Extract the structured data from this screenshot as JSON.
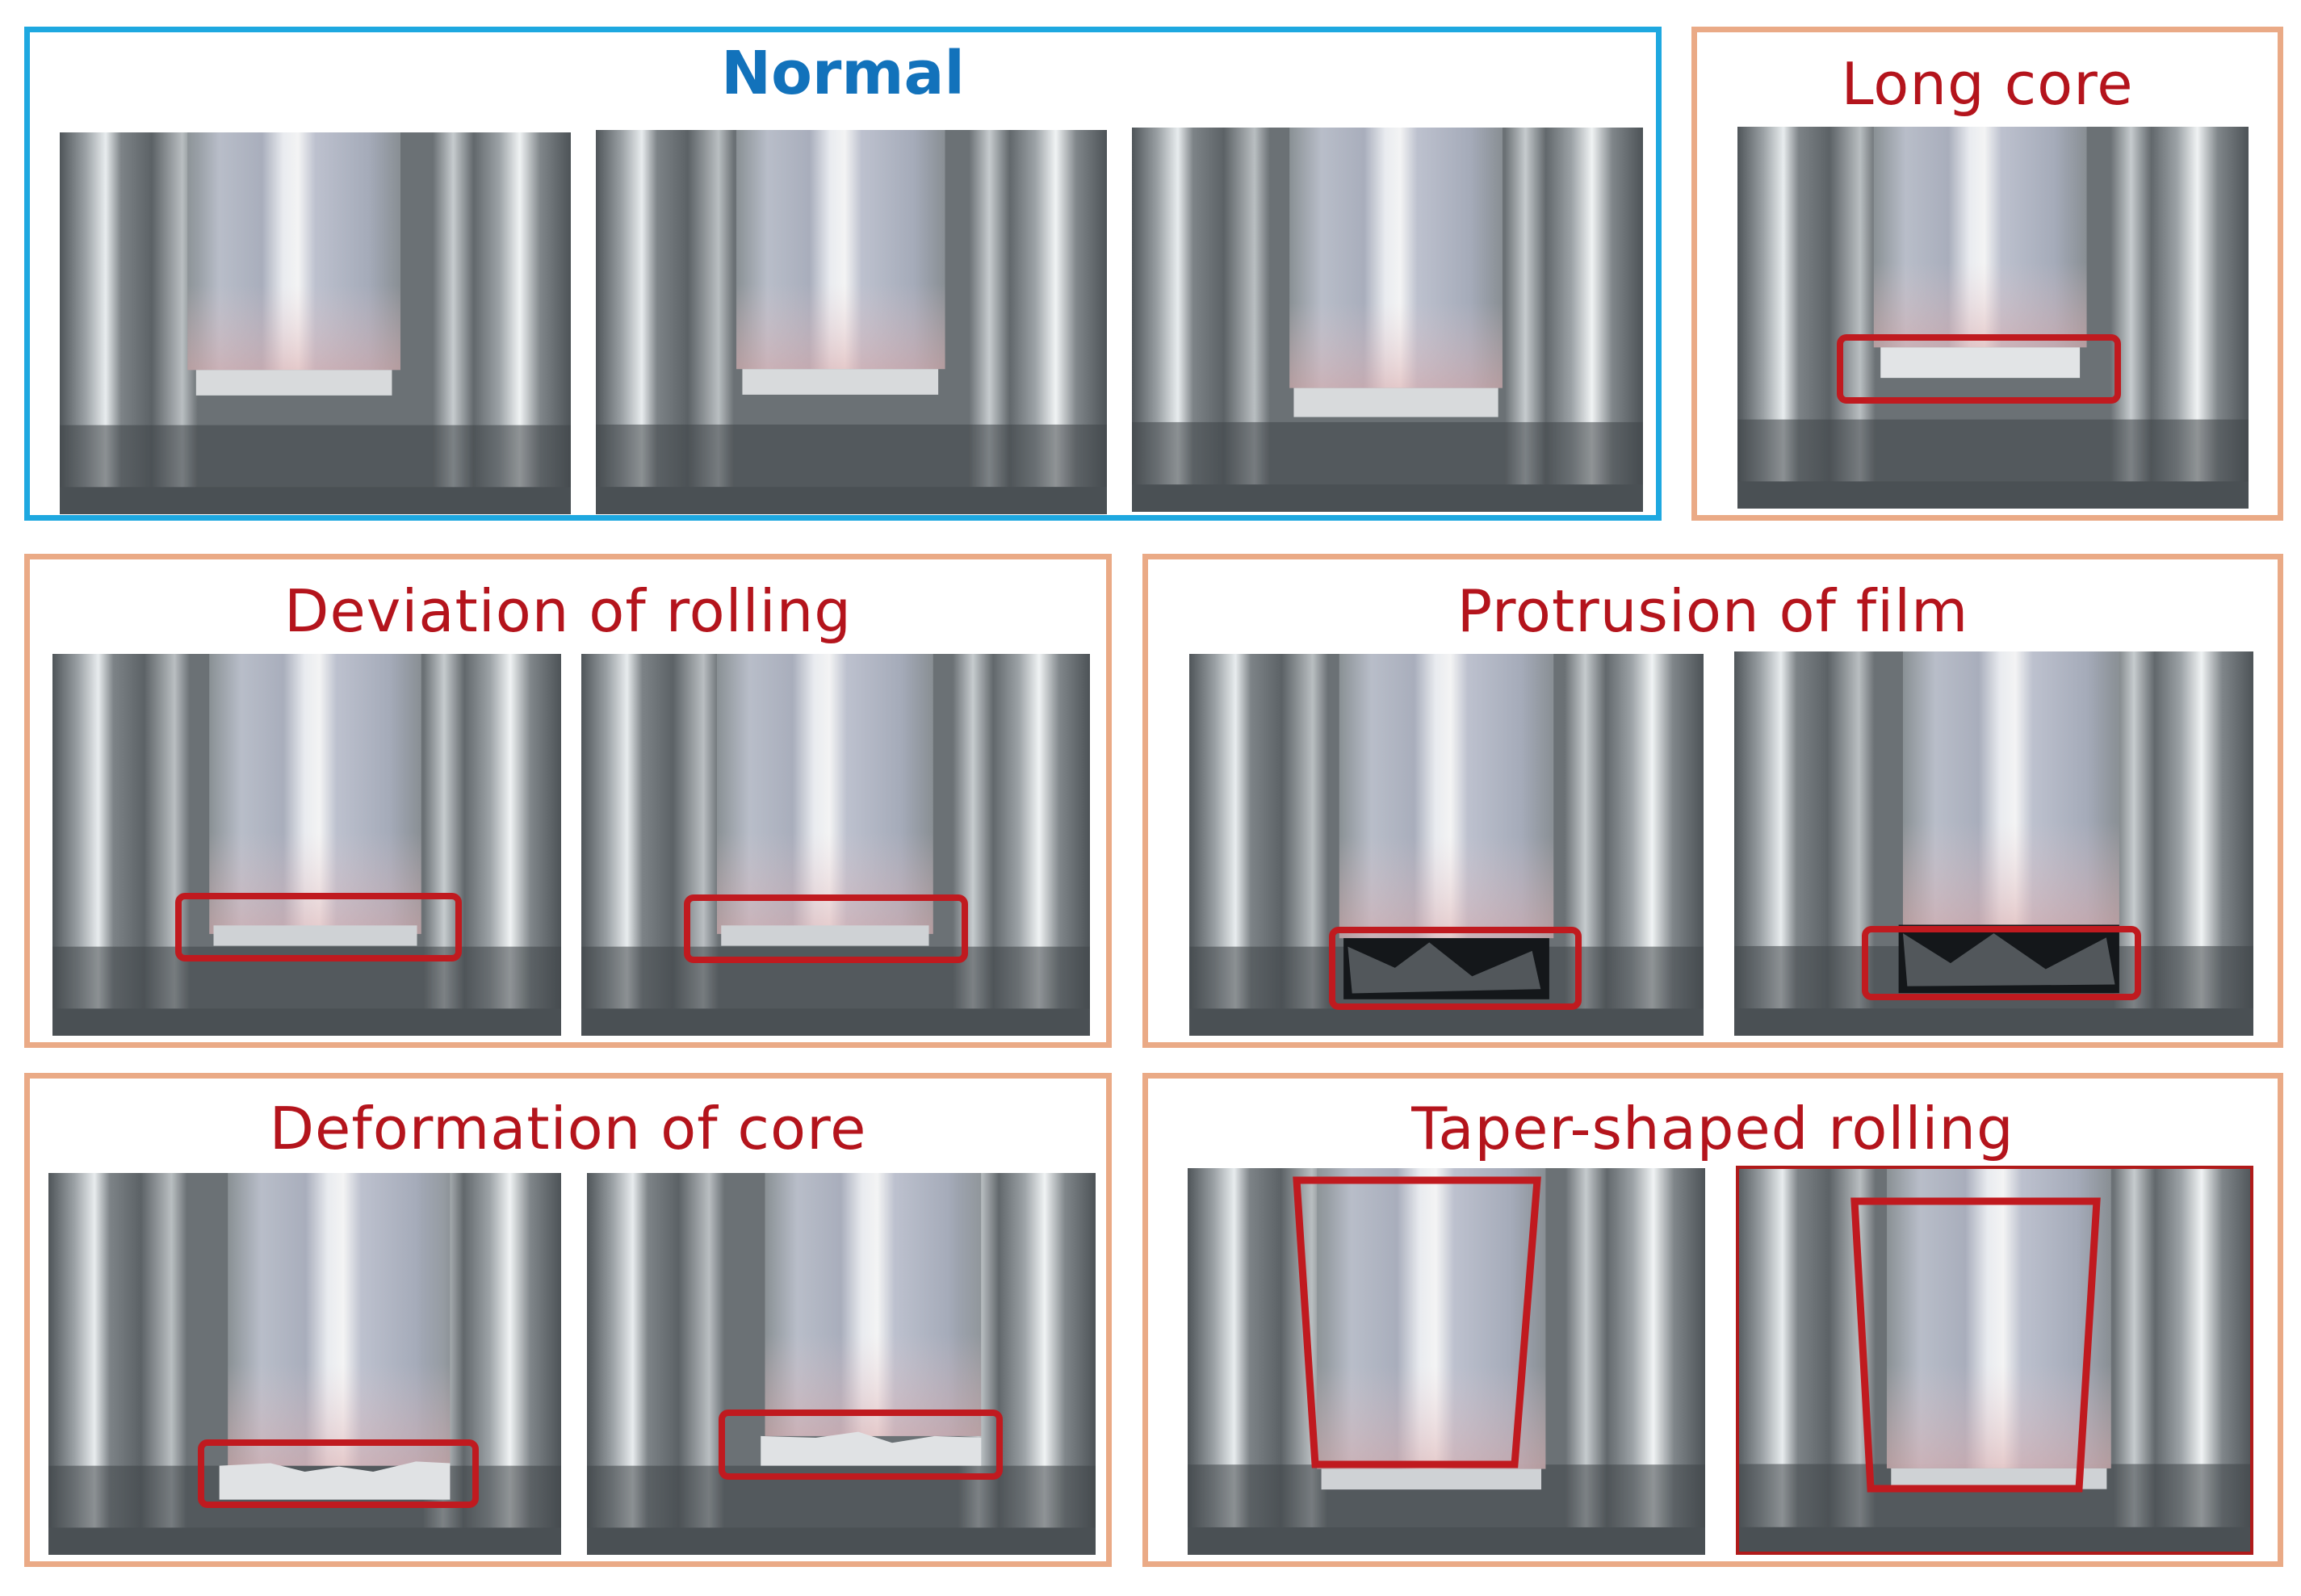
{
  "figure": {
    "panels": [
      {
        "id": "normal",
        "title": "Normal",
        "border_color": "#1ea8e0",
        "title_color": "#1272bb",
        "photo_count": 3
      },
      {
        "id": "long-core",
        "title": "Long core",
        "border_color": "#eaaa86",
        "title_color": "#b4141c",
        "photo_count": 1
      },
      {
        "id": "deviation-of-rolling",
        "title": "Deviation of rolling",
        "border_color": "#eaaa86",
        "title_color": "#b4141c",
        "photo_count": 2
      },
      {
        "id": "protrusion-of-film",
        "title": "Protrusion of film",
        "border_color": "#eaaa86",
        "title_color": "#b4141c",
        "photo_count": 2
      },
      {
        "id": "deformation-of-core",
        "title": "Deformation of core",
        "border_color": "#eaaa86",
        "title_color": "#b4141c",
        "photo_count": 2
      },
      {
        "id": "taper-shaped-rolling",
        "title": "Taper-shaped rolling",
        "border_color": "#eaaa86",
        "title_color": "#b4141c",
        "photo_count": 2
      }
    ],
    "highlight_color": "#c01a1f"
  }
}
